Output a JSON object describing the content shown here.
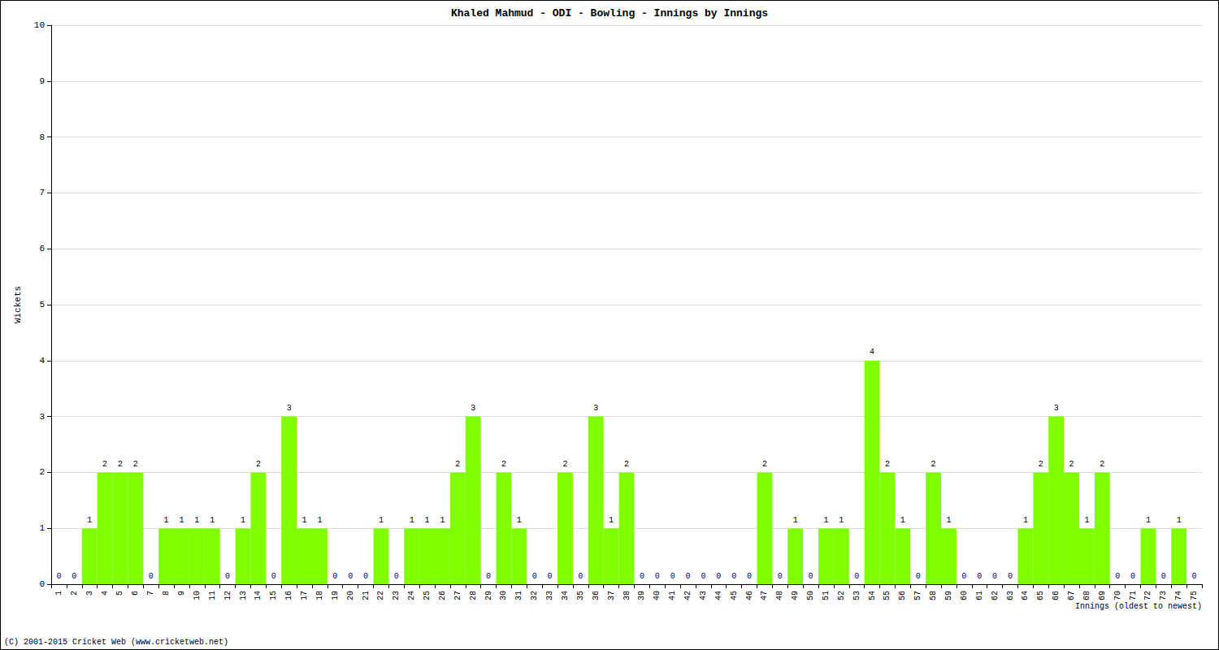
{
  "chart_data": {
    "type": "bar",
    "title": "Khaled Mahmud - ODI - Bowling - Innings by Innings",
    "xlabel": "Innings (oldest to newest)",
    "ylabel": "Wickets",
    "footer": "(C) 2001-2015 Cricket Web (www.cricketweb.net)",
    "categories": [
      "1",
      "2",
      "3",
      "4",
      "5",
      "6",
      "7",
      "8",
      "9",
      "10",
      "11",
      "12",
      "13",
      "14",
      "15",
      "16",
      "17",
      "18",
      "19",
      "20",
      "21",
      "22",
      "23",
      "24",
      "25",
      "26",
      "27",
      "28",
      "29",
      "30",
      "31",
      "32",
      "33",
      "34",
      "35",
      "36",
      "37",
      "38",
      "39",
      "40",
      "41",
      "42",
      "43",
      "44",
      "45",
      "46",
      "47",
      "48",
      "49",
      "50",
      "51",
      "52",
      "53",
      "54",
      "55",
      "56",
      "57",
      "58",
      "59",
      "60",
      "61",
      "62",
      "63",
      "64",
      "65",
      "66",
      "67",
      "68",
      "69",
      "70",
      "71",
      "72",
      "73",
      "74",
      "75"
    ],
    "values": [
      0,
      0,
      1,
      2,
      2,
      2,
      0,
      1,
      1,
      1,
      1,
      0,
      1,
      2,
      0,
      3,
      1,
      1,
      0,
      0,
      0,
      1,
      0,
      1,
      1,
      1,
      2,
      3,
      0,
      2,
      1,
      0,
      0,
      2,
      0,
      3,
      1,
      2,
      0,
      0,
      0,
      0,
      0,
      0,
      0,
      0,
      2,
      0,
      1,
      0,
      1,
      1,
      0,
      4,
      2,
      1,
      0,
      2,
      1,
      0,
      0,
      0,
      0,
      1,
      2,
      3,
      2,
      1,
      2,
      0,
      0,
      1,
      0,
      1,
      0
    ],
    "color": "#80ff00",
    "ylim": [
      0,
      10
    ],
    "yticks": [
      0,
      1,
      2,
      3,
      4,
      5,
      6,
      7,
      8,
      9,
      10
    ],
    "grid": true,
    "data_labels": true
  }
}
